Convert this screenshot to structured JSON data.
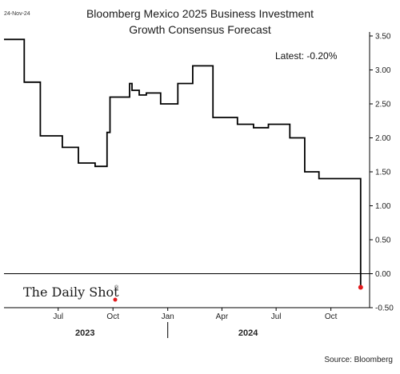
{
  "header": {
    "date_stamp": "24-Nov-24",
    "title_line1": "Bloomberg Mexico 2025 Business Investment",
    "title_line2": "Growth Consensus Forecast"
  },
  "annotation": {
    "latest": "Latest:  -0.20%"
  },
  "branding": {
    "logo_text": "The Daily Shot",
    "logo_mark": "®",
    "dot_color": "#e31a1c"
  },
  "footer": {
    "source": "Source: Bloomberg"
  },
  "chart_data": {
    "type": "line",
    "title": "Bloomberg Mexico 2025 Business Investment Growth Consensus Forecast",
    "xlabel": "",
    "ylabel": "",
    "ylim": [
      -0.5,
      3.5
    ],
    "xlim": [
      "2023-04-01",
      "2024-12-05"
    ],
    "y_ticks": [
      "3.50",
      "3.00",
      "2.50",
      "2.00",
      "1.50",
      "1.00",
      "0.50",
      "0.00",
      "-0.50"
    ],
    "y_tick_values": [
      3.5,
      3.0,
      2.5,
      2.0,
      1.5,
      1.0,
      0.5,
      0.0,
      -0.5
    ],
    "x_ticks": [
      {
        "label": "Jul",
        "date": "2023-07-01"
      },
      {
        "label": "Oct",
        "date": "2023-10-01"
      },
      {
        "label": "Jan",
        "date": "2024-01-01"
      },
      {
        "label": "Apr",
        "date": "2024-04-01"
      },
      {
        "label": "Jul",
        "date": "2024-07-01"
      },
      {
        "label": "Oct",
        "date": "2024-10-01"
      }
    ],
    "year_labels": [
      {
        "label": "2023",
        "date": "2023-08-15"
      },
      {
        "label": "2024",
        "date": "2024-05-15"
      }
    ],
    "zero_line": 0.0,
    "line_color": "#000000",
    "marker_color": "#e31a1c",
    "series": [
      {
        "x": [
          "2023-04-01",
          "2023-05-05",
          "2023-05-05",
          "2023-06-01",
          "2023-06-01",
          "2023-07-08",
          "2023-07-08",
          "2023-08-04",
          "2023-08-04",
          "2023-09-01",
          "2023-09-01",
          "2023-09-21",
          "2023-09-21",
          "2023-09-26",
          "2023-09-26",
          "2023-10-29",
          "2023-10-29",
          "2023-11-02",
          "2023-11-02",
          "2023-11-14",
          "2023-11-14",
          "2023-11-26",
          "2023-11-26",
          "2023-12-20",
          "2023-12-20",
          "2024-01-18",
          "2024-01-18",
          "2024-02-12",
          "2024-02-12",
          "2024-03-17",
          "2024-03-17",
          "2024-04-27",
          "2024-04-27",
          "2024-05-24",
          "2024-05-24",
          "2024-06-18",
          "2024-06-18",
          "2024-07-24",
          "2024-07-24",
          "2024-08-18",
          "2024-08-18",
          "2024-09-11",
          "2024-09-11",
          "2024-09-16",
          "2024-09-16",
          "2024-10-02",
          "2024-10-02",
          "2024-11-20",
          "2024-11-20"
        ],
        "y": [
          3.45,
          3.45,
          2.82,
          2.82,
          2.03,
          2.03,
          1.86,
          1.86,
          1.63,
          1.63,
          1.58,
          1.58,
          2.08,
          2.08,
          2.6,
          2.6,
          2.8,
          2.8,
          2.7,
          2.7,
          2.63,
          2.63,
          2.66,
          2.66,
          2.5,
          2.5,
          2.8,
          2.8,
          3.06,
          3.06,
          2.3,
          2.3,
          2.2,
          2.2,
          2.15,
          2.15,
          2.2,
          2.2,
          2.0,
          2.0,
          1.5,
          1.5,
          1.4,
          1.4,
          1.4,
          1.4,
          1.4,
          1.4,
          -0.2
        ]
      }
    ],
    "latest_point": {
      "date": "2024-11-20",
      "value": -0.2
    }
  }
}
